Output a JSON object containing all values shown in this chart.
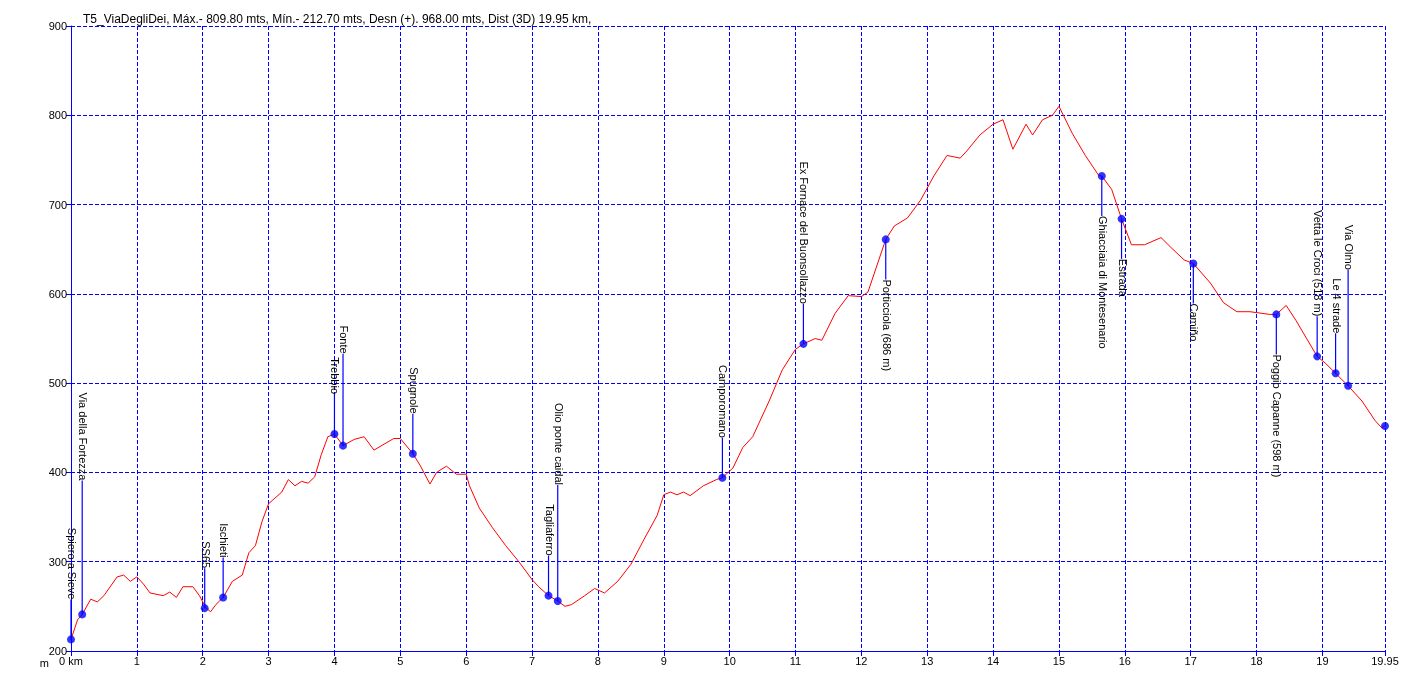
{
  "chart_data": {
    "type": "line",
    "title": "T5_ViaDegliDei, Máx.- 809.80 mts, Mín.- 212.70 mts, Desn (+). 968.00 mts, Dist (3D) 19.95 km,",
    "ylabel": "m",
    "xlim": [
      0,
      19.95
    ],
    "xticks": [
      {
        "value": 0,
        "label": "0 km"
      },
      1,
      2,
      3,
      4,
      5,
      6,
      7,
      8,
      9,
      10,
      11,
      12,
      13,
      14,
      15,
      16,
      17,
      18,
      19,
      19.95
    ],
    "ylim": [
      200,
      900
    ],
    "yticks": [
      200,
      300,
      400,
      500,
      600,
      700,
      800,
      900
    ],
    "grid": true,
    "line_style": "solid",
    "series": [
      {
        "color": "#ff0000",
        "marker": "none",
        "x": [
          0,
          0.1,
          0.17,
          0.3,
          0.4,
          0.5,
          0.7,
          0.8,
          0.9,
          1.0,
          1.1,
          1.2,
          1.4,
          1.5,
          1.6,
          1.7,
          1.85,
          1.95,
          2.05,
          2.12,
          2.2,
          2.31,
          2.45,
          2.6,
          2.7,
          2.8,
          2.9,
          3.0,
          3.2,
          3.3,
          3.4,
          3.5,
          3.6,
          3.7,
          3.8,
          3.9,
          4.0,
          4.13,
          4.3,
          4.45,
          4.6,
          4.9,
          5.0,
          5.19,
          5.3,
          5.45,
          5.55,
          5.7,
          5.85,
          6.0,
          6.05,
          6.2,
          6.4,
          6.6,
          6.8,
          7.0,
          7.1,
          7.25,
          7.39,
          7.5,
          7.6,
          7.8,
          7.95,
          8.1,
          8.3,
          8.5,
          8.7,
          8.9,
          9.0,
          9.1,
          9.2,
          9.3,
          9.4,
          9.6,
          9.8,
          9.89,
          10.05,
          10.2,
          10.35,
          10.6,
          10.8,
          11.0,
          11.12,
          11.3,
          11.4,
          11.6,
          11.8,
          12.0,
          12.1,
          12.37,
          12.5,
          12.7,
          12.9,
          13.1,
          13.3,
          13.5,
          13.6,
          13.8,
          14.0,
          14.15,
          14.3,
          14.5,
          14.6,
          14.75,
          14.9,
          15.0,
          15.2,
          15.4,
          15.6,
          15.65,
          15.8,
          15.95,
          16.1,
          16.3,
          16.55,
          16.7,
          16.9,
          17.04,
          17.3,
          17.5,
          17.7,
          17.9,
          18.2,
          18.3,
          18.45,
          18.6,
          18.8,
          18.92,
          19.05,
          19.2,
          19.39,
          19.6,
          19.8,
          19.9,
          19.95
        ],
        "values": [
          213,
          235,
          241,
          258,
          255,
          262,
          283,
          285,
          278,
          283,
          275,
          265,
          262,
          266,
          260,
          272,
          272,
          262,
          248,
          244,
          252,
          260,
          278,
          285,
          310,
          318,
          345,
          365,
          378,
          392,
          385,
          390,
          388,
          395,
          420,
          440,
          443,
          430,
          437,
          440,
          425,
          438,
          438,
          421,
          408,
          387,
          400,
          407,
          398,
          398,
          385,
          360,
          338,
          318,
          300,
          280,
          272,
          262,
          256,
          250,
          252,
          262,
          270,
          265,
          278,
          297,
          325,
          352,
          375,
          378,
          375,
          378,
          374,
          385,
          392,
          394,
          405,
          428,
          440,
          480,
          515,
          538,
          544,
          550,
          548,
          578,
          598,
          597,
          602,
          661,
          676,
          685,
          705,
          732,
          755,
          752,
          760,
          778,
          790,
          795,
          762,
          790,
          778,
          795,
          800,
          810,
          780,
          755,
          733,
          732,
          717,
          684,
          655,
          655,
          663,
          652,
          638,
          634,
          612,
          590,
          580,
          580,
          577,
          577,
          587,
          570,
          545,
          530,
          522,
          511,
          497,
          480,
          458,
          450,
          452
        ]
      },
      {
        "type": "scatter",
        "color": "#0000ff",
        "marker": "circle",
        "x": [
          0,
          0.17,
          2.03,
          2.31,
          4.0,
          4.13,
          5.19,
          7.25,
          7.39,
          9.89,
          11.12,
          12.37,
          15.65,
          15.95,
          17.04,
          18.3,
          18.92,
          19.2,
          19.39,
          19.95
        ],
        "values": [
          213,
          241,
          248,
          260,
          443,
          430,
          421,
          262,
          256,
          394,
          544,
          661,
          732,
          684,
          634,
          577,
          530,
          511,
          497,
          452
        ]
      }
    ],
    "annotations": [
      {
        "text": "Spiero a Sieve",
        "x": 0,
        "y": 213
      },
      {
        "text": "Via della Fortezza",
        "x": 0.17,
        "y": 241
      },
      {
        "text": "SS65",
        "x": 2.03,
        "y": 248
      },
      {
        "text": "Ischieti",
        "x": 2.31,
        "y": 260
      },
      {
        "text": "Trebbio",
        "x": 4.0,
        "y": 443
      },
      {
        "text": "Fonte",
        "x": 4.13,
        "y": 430
      },
      {
        "text": "Spugnole",
        "x": 5.19,
        "y": 421
      },
      {
        "text": "Tagliaferro",
        "x": 7.25,
        "y": 262
      },
      {
        "text": "Olio ponte caidal",
        "x": 7.39,
        "y": 256
      },
      {
        "text": "Camporomano",
        "x": 9.89,
        "y": 394
      },
      {
        "text": "Ex Fornace del Buonsollazzo",
        "x": 11.12,
        "y": 544
      },
      {
        "text": "Porticciola (686 m)",
        "x": 12.37,
        "y": 661
      },
      {
        "text": "Ghiacciaia di Montesenario",
        "x": 15.65,
        "y": 732
      },
      {
        "text": "Estrada",
        "x": 15.95,
        "y": 684
      },
      {
        "text": "Camiño",
        "x": 17.04,
        "y": 634
      },
      {
        "text": "Poggio Capanne (598 m)",
        "x": 18.3,
        "y": 577
      },
      {
        "text": "Vetta le Croci (518 m)",
        "x": 18.92,
        "y": 530
      },
      {
        "text": "Le 4 strade",
        "x": 19.2,
        "y": 511
      },
      {
        "text": "Via Olmo",
        "x": 19.39,
        "y": 497
      }
    ]
  }
}
